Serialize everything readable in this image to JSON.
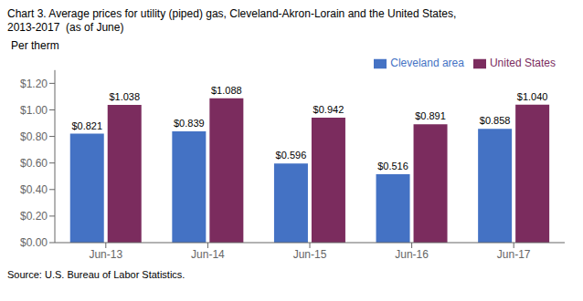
{
  "chart_data": {
    "type": "bar",
    "title": "Chart 3. Average prices for utility (piped) gas, Cleveland-Akron-Lorain and the United States,",
    "subtitle": "2013-2017  (as of June)",
    "ylabel": "Per therm",
    "source": "Source: U.S. Bureau of Labor Statistics.",
    "categories": [
      "Jun-13",
      "Jun-14",
      "Jun-15",
      "Jun-16",
      "Jun-17"
    ],
    "series": [
      {
        "name": "Cleveland area",
        "color": "#4472C4",
        "values": [
          0.821,
          0.839,
          0.596,
          0.516,
          0.858
        ],
        "value_labels": [
          "$0.821",
          "$0.839",
          "$0.596",
          "$0.516",
          "$0.858"
        ]
      },
      {
        "name": "United States",
        "color": "#7B2C5E",
        "values": [
          1.038,
          1.088,
          0.942,
          0.891,
          1.04
        ],
        "value_labels": [
          "$1.038",
          "$1.088",
          "$0.942",
          "$0.891",
          "$1.040"
        ]
      }
    ],
    "ylim": [
      0,
      1.3
    ],
    "yticks": [
      {
        "value": 0.0,
        "label": "$0.00"
      },
      {
        "value": 0.2,
        "label": "$0.20"
      },
      {
        "value": 0.4,
        "label": "$0.40"
      },
      {
        "value": 0.6,
        "label": "$0.60"
      },
      {
        "value": 0.8,
        "label": "$0.80"
      },
      {
        "value": 1.0,
        "label": "$1.00"
      },
      {
        "value": 1.2,
        "label": "$1.20"
      }
    ],
    "grid": false,
    "legend": "upper right",
    "data_labels": true
  }
}
